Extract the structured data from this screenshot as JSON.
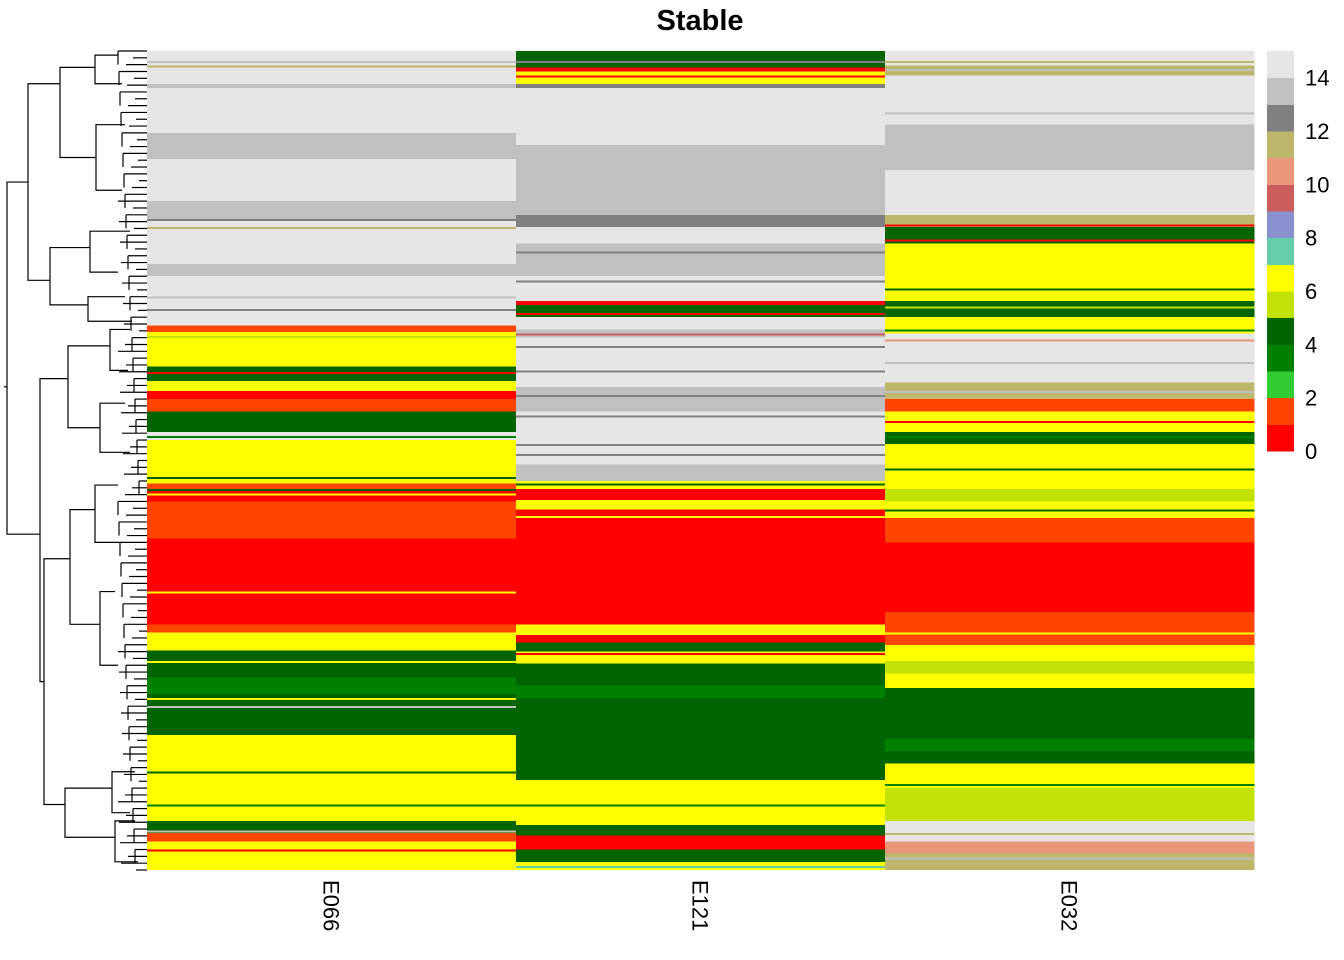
{
  "chart_data": {
    "type": "heatmap",
    "title": "Stable",
    "columns": [
      "E066",
      "E121",
      "E032"
    ],
    "legend": {
      "ticks": [
        0,
        2,
        4,
        6,
        8,
        10,
        12,
        14
      ],
      "colors": [
        "#FF0000",
        "#FF4500",
        "#32CD32",
        "#008000",
        "#006400",
        "#C2E105",
        "#FFFF00",
        "#66CDAA",
        "#8A91D0",
        "#CD5C5C",
        "#E9967A",
        "#BDB76B",
        "#808080",
        "#C0C0C0",
        "#E6E6E6"
      ]
    },
    "row_fraction_units": "fraction of rows from top",
    "blocks": {
      "E066": [
        [
          0.0,
          0.04,
          14
        ],
        [
          0.04,
          0.045,
          13
        ],
        [
          0.045,
          0.1,
          14
        ],
        [
          0.1,
          0.132,
          13
        ],
        [
          0.132,
          0.183,
          14
        ],
        [
          0.183,
          0.205,
          13
        ],
        [
          0.205,
          0.26,
          14
        ],
        [
          0.26,
          0.275,
          13
        ],
        [
          0.275,
          0.335,
          14
        ],
        [
          0.335,
          0.343,
          1
        ],
        [
          0.343,
          0.385,
          6
        ],
        [
          0.385,
          0.403,
          4
        ],
        [
          0.403,
          0.415,
          6
        ],
        [
          0.415,
          0.425,
          0
        ],
        [
          0.425,
          0.44,
          1
        ],
        [
          0.44,
          0.465,
          4
        ],
        [
          0.465,
          0.475,
          14
        ],
        [
          0.475,
          0.528,
          6
        ],
        [
          0.528,
          0.535,
          1
        ],
        [
          0.535,
          0.55,
          0
        ],
        [
          0.55,
          0.595,
          1
        ],
        [
          0.595,
          0.7,
          0
        ],
        [
          0.7,
          0.71,
          1
        ],
        [
          0.71,
          0.732,
          6
        ],
        [
          0.732,
          0.765,
          4
        ],
        [
          0.765,
          0.785,
          3
        ],
        [
          0.785,
          0.835,
          4
        ],
        [
          0.835,
          0.9,
          6
        ],
        [
          0.9,
          0.94,
          6
        ],
        [
          0.94,
          0.955,
          4
        ],
        [
          0.955,
          0.965,
          1
        ],
        [
          0.965,
          1.0,
          6
        ]
      ],
      "E121": [
        [
          0.0,
          0.02,
          4
        ],
        [
          0.02,
          0.025,
          0
        ],
        [
          0.025,
          0.04,
          6
        ],
        [
          0.04,
          0.045,
          12
        ],
        [
          0.045,
          0.115,
          14
        ],
        [
          0.115,
          0.2,
          13
        ],
        [
          0.2,
          0.215,
          12
        ],
        [
          0.215,
          0.235,
          14
        ],
        [
          0.235,
          0.275,
          13
        ],
        [
          0.275,
          0.305,
          14
        ],
        [
          0.305,
          0.31,
          0
        ],
        [
          0.31,
          0.325,
          4
        ],
        [
          0.325,
          0.34,
          14
        ],
        [
          0.34,
          0.35,
          13
        ],
        [
          0.35,
          0.41,
          14
        ],
        [
          0.41,
          0.44,
          13
        ],
        [
          0.44,
          0.505,
          14
        ],
        [
          0.505,
          0.525,
          13
        ],
        [
          0.525,
          0.535,
          6
        ],
        [
          0.535,
          0.548,
          0
        ],
        [
          0.548,
          0.56,
          6
        ],
        [
          0.56,
          0.7,
          0
        ],
        [
          0.7,
          0.713,
          6
        ],
        [
          0.713,
          0.722,
          0
        ],
        [
          0.722,
          0.733,
          4
        ],
        [
          0.733,
          0.748,
          6
        ],
        [
          0.748,
          0.775,
          4
        ],
        [
          0.775,
          0.79,
          3
        ],
        [
          0.79,
          0.89,
          4
        ],
        [
          0.89,
          0.945,
          6
        ],
        [
          0.945,
          0.958,
          4
        ],
        [
          0.958,
          0.975,
          0
        ],
        [
          0.975,
          0.99,
          4
        ],
        [
          0.99,
          1.0,
          6
        ]
      ],
      "E032": [
        [
          0.0,
          0.018,
          14
        ],
        [
          0.018,
          0.03,
          11
        ],
        [
          0.03,
          0.09,
          14
        ],
        [
          0.09,
          0.11,
          13
        ],
        [
          0.11,
          0.145,
          13
        ],
        [
          0.145,
          0.2,
          14
        ],
        [
          0.2,
          0.215,
          11
        ],
        [
          0.215,
          0.235,
          4
        ],
        [
          0.235,
          0.305,
          6
        ],
        [
          0.305,
          0.325,
          4
        ],
        [
          0.325,
          0.345,
          6
        ],
        [
          0.345,
          0.405,
          14
        ],
        [
          0.405,
          0.425,
          11
        ],
        [
          0.425,
          0.44,
          1
        ],
        [
          0.44,
          0.465,
          6
        ],
        [
          0.465,
          0.48,
          4
        ],
        [
          0.48,
          0.535,
          6
        ],
        [
          0.535,
          0.55,
          5
        ],
        [
          0.55,
          0.57,
          6
        ],
        [
          0.57,
          0.6,
          1
        ],
        [
          0.6,
          0.685,
          0
        ],
        [
          0.685,
          0.725,
          1
        ],
        [
          0.725,
          0.745,
          6
        ],
        [
          0.745,
          0.76,
          5
        ],
        [
          0.76,
          0.778,
          6
        ],
        [
          0.778,
          0.805,
          4
        ],
        [
          0.805,
          0.84,
          4
        ],
        [
          0.84,
          0.855,
          3
        ],
        [
          0.855,
          0.87,
          4
        ],
        [
          0.87,
          0.9,
          6
        ],
        [
          0.9,
          0.94,
          5
        ],
        [
          0.94,
          0.965,
          14
        ],
        [
          0.965,
          0.98,
          10
        ],
        [
          0.98,
          1.0,
          11
        ]
      ]
    },
    "thin_lines": {
      "E066": [
        [
          0.012,
          13
        ],
        [
          0.018,
          11
        ],
        [
          0.205,
          12
        ],
        [
          0.215,
          11
        ],
        [
          0.3,
          13
        ],
        [
          0.315,
          12
        ],
        [
          0.348,
          5
        ],
        [
          0.392,
          0
        ],
        [
          0.47,
          3
        ],
        [
          0.52,
          4
        ],
        [
          0.535,
          4
        ],
        [
          0.54,
          6
        ],
        [
          0.66,
          6
        ],
        [
          0.745,
          6
        ],
        [
          0.79,
          6
        ],
        [
          0.8,
          13
        ],
        [
          0.88,
          4
        ],
        [
          0.92,
          3
        ],
        [
          0.952,
          13
        ],
        [
          0.975,
          0
        ]
      ],
      "E121": [
        [
          0.012,
          12
        ],
        [
          0.03,
          0
        ],
        [
          0.205,
          12
        ],
        [
          0.245,
          12
        ],
        [
          0.28,
          12
        ],
        [
          0.32,
          0
        ],
        [
          0.345,
          9
        ],
        [
          0.36,
          12
        ],
        [
          0.39,
          12
        ],
        [
          0.42,
          12
        ],
        [
          0.445,
          12
        ],
        [
          0.48,
          12
        ],
        [
          0.492,
          12
        ],
        [
          0.528,
          4
        ],
        [
          0.568,
          6
        ],
        [
          0.735,
          0
        ],
        [
          0.812,
          4
        ],
        [
          0.842,
          4
        ],
        [
          0.92,
          3
        ],
        [
          0.995,
          7
        ]
      ],
      "E032": [
        [
          0.012,
          11
        ],
        [
          0.022,
          13
        ],
        [
          0.075,
          13
        ],
        [
          0.212,
          0
        ],
        [
          0.23,
          0
        ],
        [
          0.29,
          4
        ],
        [
          0.312,
          5
        ],
        [
          0.34,
          3
        ],
        [
          0.352,
          10
        ],
        [
          0.38,
          13
        ],
        [
          0.415,
          13
        ],
        [
          0.452,
          0
        ],
        [
          0.47,
          3
        ],
        [
          0.51,
          4
        ],
        [
          0.56,
          4
        ],
        [
          0.71,
          6
        ],
        [
          0.755,
          5
        ],
        [
          0.79,
          4
        ],
        [
          0.895,
          3
        ],
        [
          0.925,
          5
        ],
        [
          0.955,
          11
        ],
        [
          0.985,
          13
        ]
      ]
    }
  }
}
